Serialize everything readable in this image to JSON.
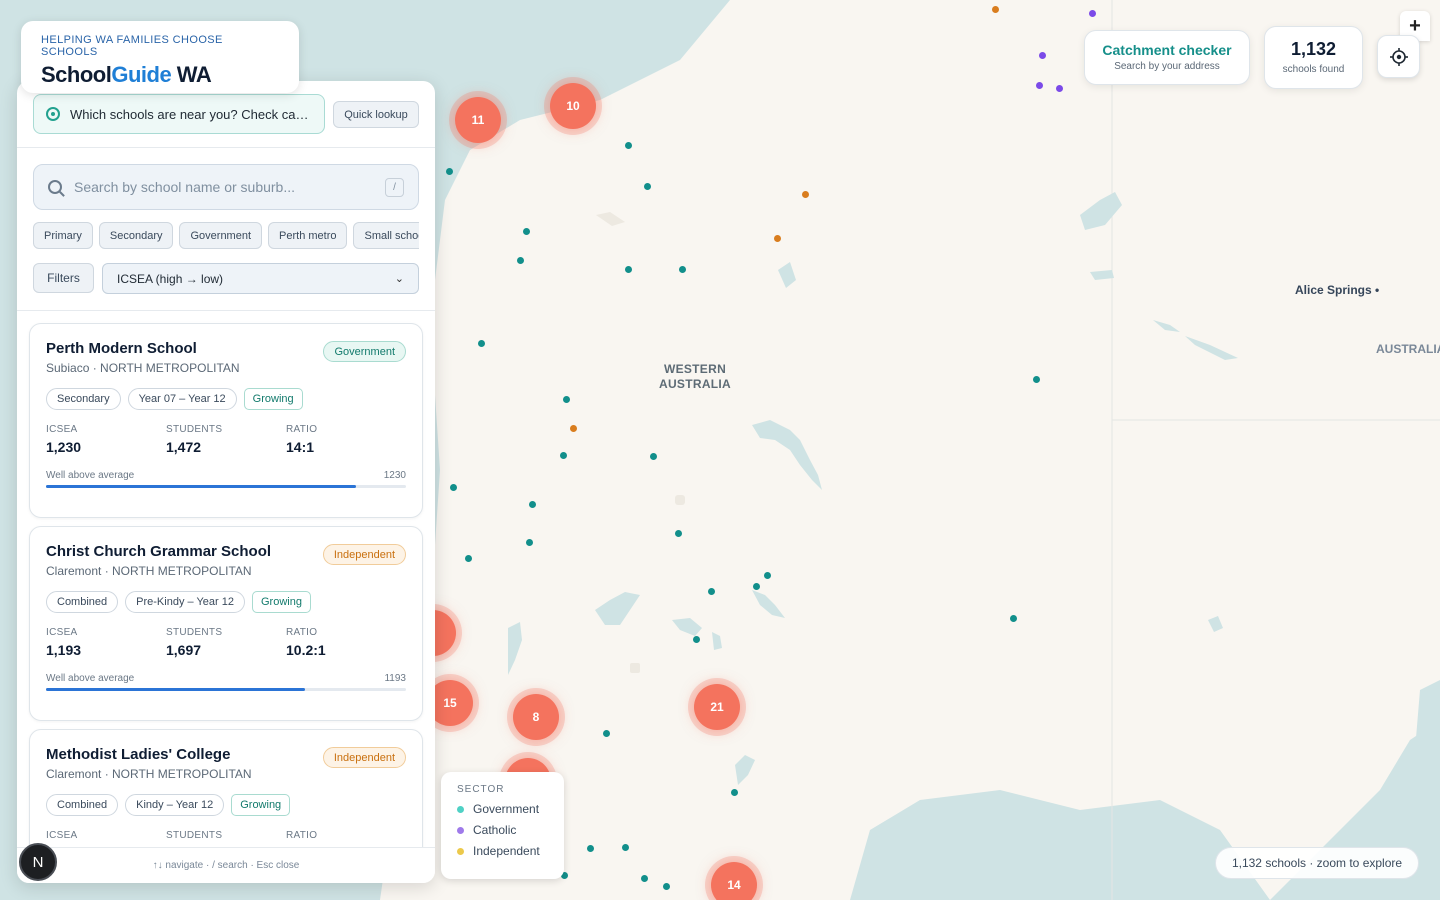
{
  "brand": {
    "tagline": "HELPING WA FAMILIES CHOOSE SCHOOLS",
    "name_part1": "School",
    "name_part2": "Guide",
    "name_part3": " WA"
  },
  "catchment_prompt": {
    "text": "Which schools are near you? Check catchment zones",
    "quick_label": "Quick lookup"
  },
  "search": {
    "placeholder": "Search by school name or suburb...",
    "shortcut": "/"
  },
  "chips": [
    "Primary",
    "Secondary",
    "Government",
    "Perth metro",
    "Small schools"
  ],
  "filters_label": "Filters",
  "sort": {
    "selected": "ICSEA (high → low)",
    "chevron": "⌄"
  },
  "stat_labels": {
    "icsea": "ICSEA",
    "students": "STUDENTS",
    "ratio": "RATIO"
  },
  "schools": [
    {
      "name": "Perth Modern School",
      "location": "Subiaco · NORTH METROPOLITAN",
      "sector": "Government",
      "type": "Secondary",
      "years": "Year 07 – Year 12",
      "trend": "Growing",
      "icsea": "1,230",
      "students": "1,472",
      "ratio": "14:1",
      "band": "Well above average",
      "icsea_raw": "1230",
      "bar_fraction": 0.86
    },
    {
      "name": "Christ Church Grammar School",
      "location": "Claremont · NORTH METROPOLITAN",
      "sector": "Independent",
      "type": "Combined",
      "years": "Pre-Kindy – Year 12",
      "trend": "Growing",
      "icsea": "1,193",
      "students": "1,697",
      "ratio": "10.2:1",
      "band": "Well above average",
      "icsea_raw": "1193",
      "bar_fraction": 0.72
    },
    {
      "name": "Methodist Ladies' College",
      "location": "Claremont · NORTH METROPOLITAN",
      "sector": "Independent",
      "type": "Combined",
      "years": "Kindy – Year 12",
      "trend": "Growing"
    }
  ],
  "footer_hint": "↑↓ navigate · / search · Esc close",
  "avatar_initial": "N",
  "catchment_checker": {
    "title": "Catchment checker",
    "subtitle": "Search by your address"
  },
  "count": {
    "value": "1,132",
    "label": "schools found"
  },
  "zoom_in": "+",
  "map": {
    "region_label_line1": "WESTERN",
    "region_label_line2": "AUSTRALIA",
    "city": "Alice Springs •",
    "edge_label": "AUSTRALIA",
    "clusters": [
      "11",
      "10",
      "15",
      "8",
      "21",
      "14"
    ]
  },
  "legend": {
    "title": "SECTOR",
    "items": [
      {
        "label": "Government",
        "color": "#4fd1c5"
      },
      {
        "label": "Catholic",
        "color": "#9f7aea"
      },
      {
        "label": "Independent",
        "color": "#ecc94b"
      }
    ]
  },
  "zoom_hint": "1,132 schools · zoom to explore",
  "colors": {
    "government_dot": "#128f8b",
    "independent_dot": "#d97d1e",
    "catholic_dot": "#7b4ae8",
    "cluster": "#f4735e",
    "accent": "#1f7fd6"
  }
}
